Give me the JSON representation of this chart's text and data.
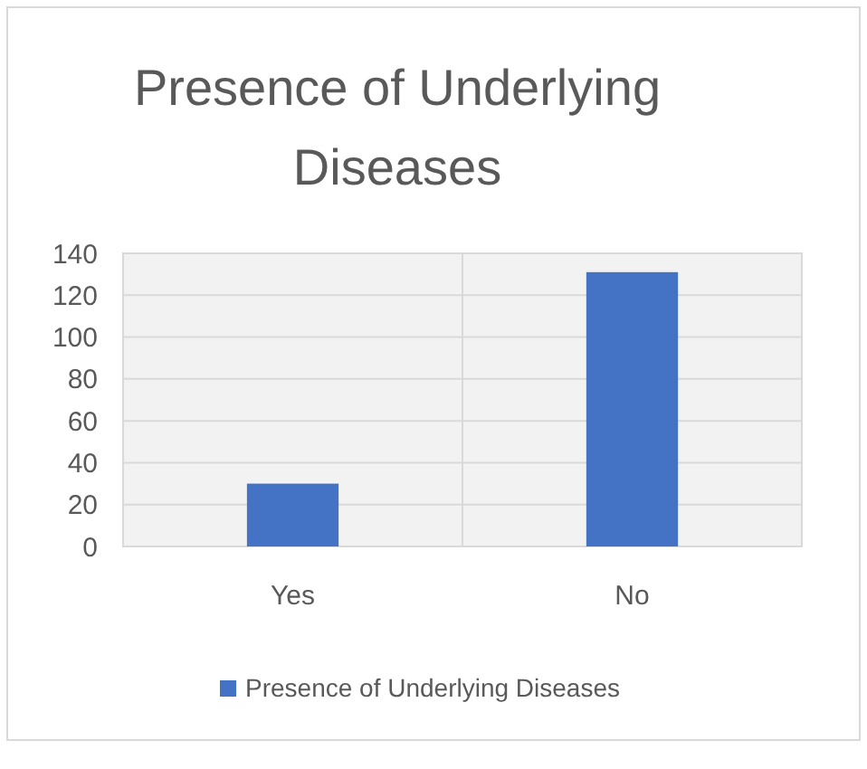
{
  "chart_data": {
    "type": "bar",
    "title": "Presence of Underlying Diseases",
    "categories": [
      "Yes",
      "No"
    ],
    "series": [
      {
        "name": "Presence of Underlying Diseases",
        "color": "#4472c4",
        "values": [
          30,
          131
        ]
      }
    ],
    "ylim": [
      0,
      140
    ],
    "yticks": [
      0,
      20,
      40,
      60,
      80,
      100,
      120,
      140
    ],
    "grid": true,
    "legend": "bottom"
  }
}
